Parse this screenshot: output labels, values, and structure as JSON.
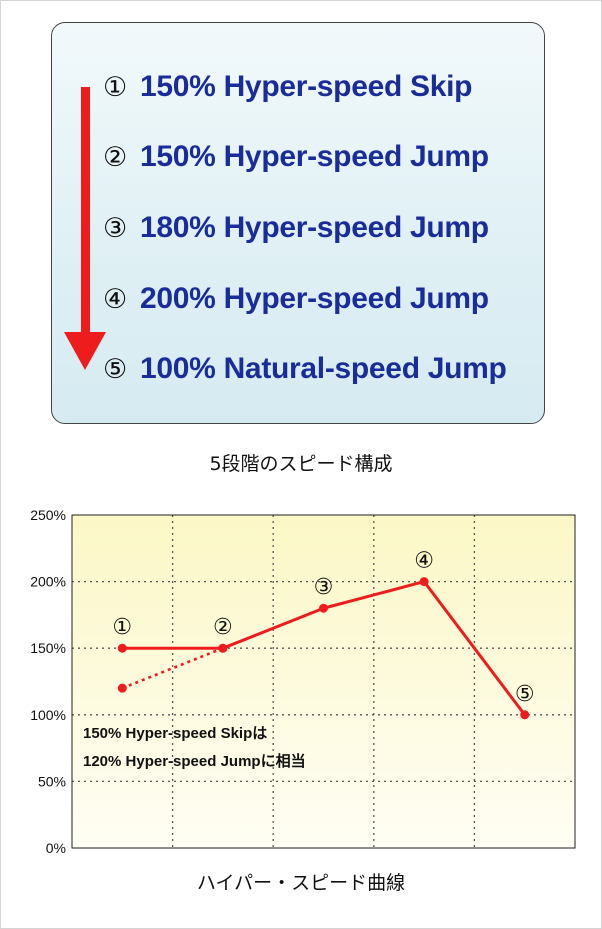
{
  "steps": {
    "items": [
      {
        "num": "①",
        "text": "150% Hyper-speed Skip"
      },
      {
        "num": "②",
        "text": "150% Hyper-speed Jump"
      },
      {
        "num": "③",
        "text": "180% Hyper-speed Jump"
      },
      {
        "num": "④",
        "text": "200% Hyper-speed Jump"
      },
      {
        "num": "⑤",
        "text": "100% Natural-speed Jump"
      }
    ],
    "caption": "5段階のスピード構成",
    "arrow_color": "#ee1c1c",
    "text_color": "#1a2c9a"
  },
  "chart_data": {
    "type": "line",
    "title": "",
    "caption": "ハイパー・スピード曲線",
    "xlabel": "",
    "ylabel": "",
    "ylim": [
      0,
      250
    ],
    "y_ticks": [
      "0%",
      "50%",
      "100%",
      "150%",
      "200%",
      "250%"
    ],
    "y_tick_values": [
      0,
      50,
      100,
      150,
      200,
      250
    ],
    "grid": true,
    "x_range": [
      -0.5,
      4.5
    ],
    "series": [
      {
        "style": "solid",
        "color": "#ee1c1c",
        "x": [
          0,
          1,
          2,
          3,
          4
        ],
        "y": [
          150,
          150,
          180,
          200,
          100
        ]
      },
      {
        "style": "dotted",
        "color": "#ee1c1c",
        "x": [
          0,
          1
        ],
        "y": [
          120,
          150
        ]
      }
    ],
    "point_labels": [
      {
        "text": "①",
        "x": 0,
        "y": 150
      },
      {
        "text": "②",
        "x": 1,
        "y": 150
      },
      {
        "text": "③",
        "x": 2,
        "y": 180
      },
      {
        "text": "④",
        "x": 3,
        "y": 200
      },
      {
        "text": "⑤",
        "x": 4,
        "y": 100
      }
    ],
    "annotation": {
      "line1": "150% Hyper-speed Skipは",
      "line2": "120% Hyper-speed Jumpに相当"
    }
  }
}
